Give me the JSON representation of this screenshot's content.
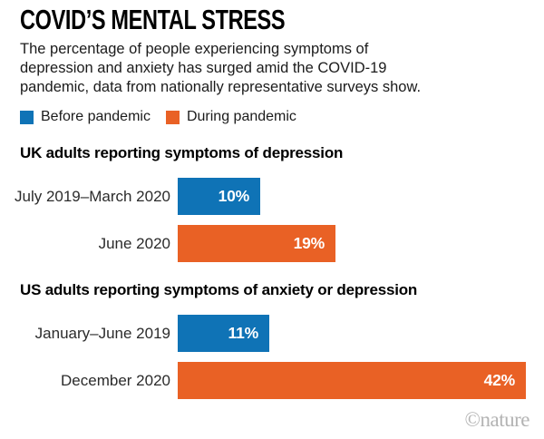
{
  "title": "COVID’S MENTAL STRESS",
  "subtitle_lines": [
    "The percentage of people experiencing symptoms of",
    "depression and anxiety has surged amid the COVID-19",
    "pandemic, data from nationally representative surveys show."
  ],
  "legend": {
    "items": [
      {
        "label": "Before pandemic",
        "color_key": "before"
      },
      {
        "label": "During pandemic",
        "color_key": "during"
      }
    ]
  },
  "colors": {
    "before": "#0F73B6",
    "during": "#E96125",
    "bar_value_text": "#FFFFFF",
    "title_text": "#000000",
    "body_text": "#1B1B1B",
    "logo_text": "#B3B3B3"
  },
  "footer": {
    "credit": "©nature"
  },
  "chart_data": [
    {
      "type": "bar",
      "orientation": "horizontal",
      "title": "UK adults reporting symptoms of depression",
      "unit": "%",
      "xlim": [
        0,
        44
      ],
      "categories": [
        "July 2019–March 2020",
        "June 2020"
      ],
      "values": [
        10,
        19
      ],
      "bars": [
        {
          "category": "July 2019–March 2020",
          "period": "Before pandemic",
          "color_key": "before",
          "value": 10,
          "label": "10%"
        },
        {
          "category": "June 2020",
          "period": "During pandemic",
          "color_key": "during",
          "value": 19,
          "label": "19%"
        }
      ]
    },
    {
      "type": "bar",
      "orientation": "horizontal",
      "title": "US adults reporting symptoms of anxiety or depression",
      "unit": "%",
      "xlim": [
        0,
        44
      ],
      "categories": [
        "January–June 2019",
        "December 2020"
      ],
      "values": [
        11,
        42
      ],
      "bars": [
        {
          "category": "January–June 2019",
          "period": "Before pandemic",
          "color_key": "before",
          "value": 11,
          "label": "11%"
        },
        {
          "category": "December 2020",
          "period": "During pandemic",
          "color_key": "during",
          "value": 42,
          "label": "42%"
        }
      ]
    }
  ]
}
